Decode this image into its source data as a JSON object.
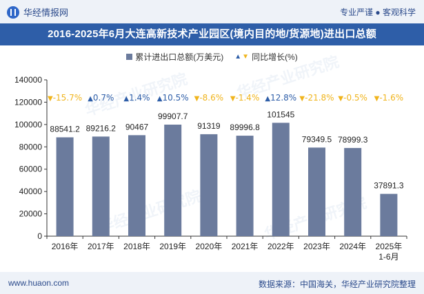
{
  "header": {
    "brand": "华经情报网",
    "tagline": "专业严谨 ● 客观科学"
  },
  "chart_data": {
    "type": "bar",
    "title": "2016-2025年6月大连高新技术产业园区(境内目的地/货源地)进出口总额",
    "categories": [
      "2016年",
      "2017年",
      "2018年",
      "2019年",
      "2020年",
      "2021年",
      "2022年",
      "2023年",
      "2024年",
      "2025年 1-6月"
    ],
    "category_lines": [
      [
        "2016年"
      ],
      [
        "2017年"
      ],
      [
        "2018年"
      ],
      [
        "2019年"
      ],
      [
        "2020年"
      ],
      [
        "2021年"
      ],
      [
        "2022年"
      ],
      [
        "2023年"
      ],
      [
        "2024年"
      ],
      [
        "2025年",
        "1-6月"
      ]
    ],
    "series": [
      {
        "name": "累计进出口总额(万美元)",
        "values": [
          88541.2,
          89216.2,
          90467,
          99907.7,
          91319,
          89996.8,
          101545,
          79349.5,
          78999.3,
          37891.3
        ],
        "labels": [
          "88541.2",
          "89216.2",
          "90467",
          "99907.7",
          "91319",
          "89996.8",
          "101545",
          "79349.5",
          "78999.3",
          "37891.3"
        ],
        "color": "#6b7b9d"
      },
      {
        "name": "同比增长(%)",
        "values": [
          -15.7,
          0.7,
          1.4,
          10.5,
          -8.6,
          -1.4,
          12.8,
          -21.8,
          -0.5,
          -1.6
        ],
        "labels": [
          "-15.7%",
          "0.7%",
          "1.4%",
          "10.5%",
          "-8.6%",
          "-1.4%",
          "12.8%",
          "-21.8%",
          "-0.5%",
          "-1.6%"
        ],
        "up_color": "#2e5ea8",
        "down_color": "#f0b41c"
      }
    ],
    "ylim": [
      0,
      140000
    ],
    "yticks": [
      "0",
      "20000",
      "40000",
      "60000",
      "80000",
      "100000",
      "120000",
      "140000"
    ],
    "ytick_values": [
      0,
      20000,
      40000,
      60000,
      80000,
      100000,
      120000,
      140000
    ],
    "grid": false,
    "legend": "top-center"
  },
  "footer": {
    "website": "www.huaon.com",
    "source": "数据来源：中国海关，华经产业研究院整理"
  },
  "watermark": "华经产业研究院"
}
